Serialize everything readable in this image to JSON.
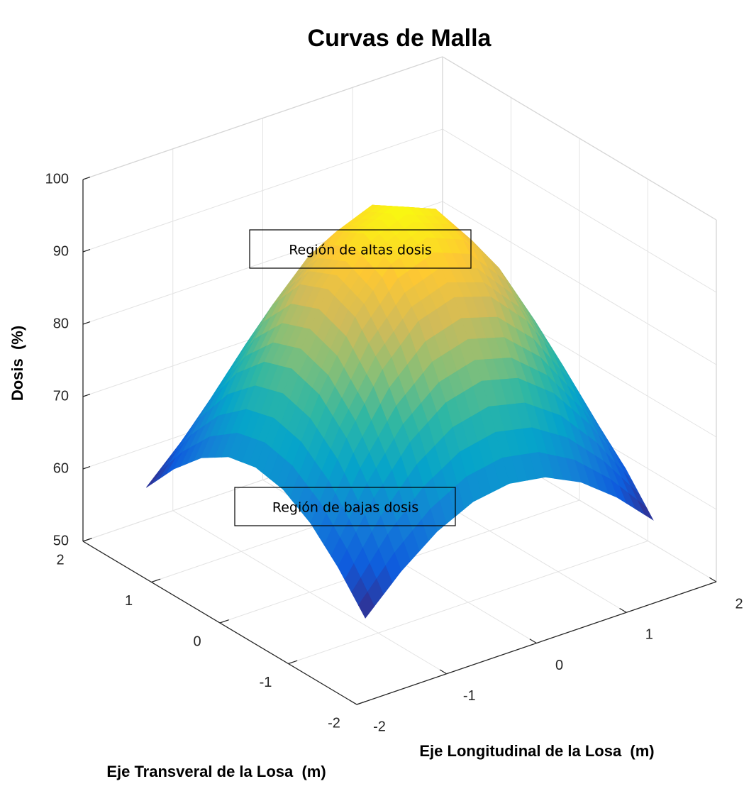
{
  "chart_data": {
    "type": "surface",
    "title": "Curvas de Malla",
    "xlabel": "Eje Longitudinal de la Losa  (m)",
    "ylabel": "Eje Transveral de la Losa  (m)",
    "zlabel": "Dosis  (%)",
    "x": [
      -1.6,
      -1.2,
      -0.8,
      -0.4,
      0,
      0.4,
      0.8,
      1.2,
      1.6
    ],
    "y": [
      -1.6,
      -1.2,
      -0.8,
      -0.4,
      0,
      0.4,
      0.8,
      1.2,
      1.6
    ],
    "z": [
      [
        58.0,
        62.8,
        66.6,
        69.0,
        69.8,
        69.0,
        66.6,
        62.8,
        58.0
      ],
      [
        62.8,
        70.6,
        76.6,
        80.4,
        81.7,
        80.4,
        76.6,
        70.6,
        62.8
      ],
      [
        66.6,
        76.6,
        84.4,
        89.4,
        91.0,
        89.4,
        84.4,
        76.6,
        66.6
      ],
      [
        69.0,
        80.4,
        89.4,
        95.0,
        97.0,
        95.0,
        89.4,
        80.4,
        69.0
      ],
      [
        69.8,
        81.7,
        91.0,
        97.0,
        99.0,
        97.0,
        91.0,
        81.7,
        69.8
      ],
      [
        69.0,
        80.4,
        89.4,
        95.0,
        97.0,
        95.0,
        89.4,
        80.4,
        69.0
      ],
      [
        66.6,
        76.6,
        84.4,
        89.4,
        91.0,
        89.4,
        84.4,
        76.6,
        66.6
      ],
      [
        62.8,
        70.6,
        76.6,
        80.4,
        81.7,
        80.4,
        76.6,
        70.6,
        62.8
      ],
      [
        58.0,
        62.8,
        66.6,
        69.0,
        69.8,
        69.0,
        66.6,
        62.8,
        58.0
      ]
    ],
    "xlim": [
      -2,
      2
    ],
    "ylim": [
      -2,
      2
    ],
    "zlim": [
      50,
      100
    ],
    "xticks": [
      -2,
      -1,
      0,
      1,
      2
    ],
    "yticks": [
      -2,
      -1,
      0,
      1,
      2
    ],
    "zticks": [
      50,
      60,
      70,
      80,
      90,
      100
    ],
    "grid": true,
    "colormap": "parula",
    "annotations": [
      "Región de altas dosis",
      "Región de bajas dosis"
    ]
  }
}
